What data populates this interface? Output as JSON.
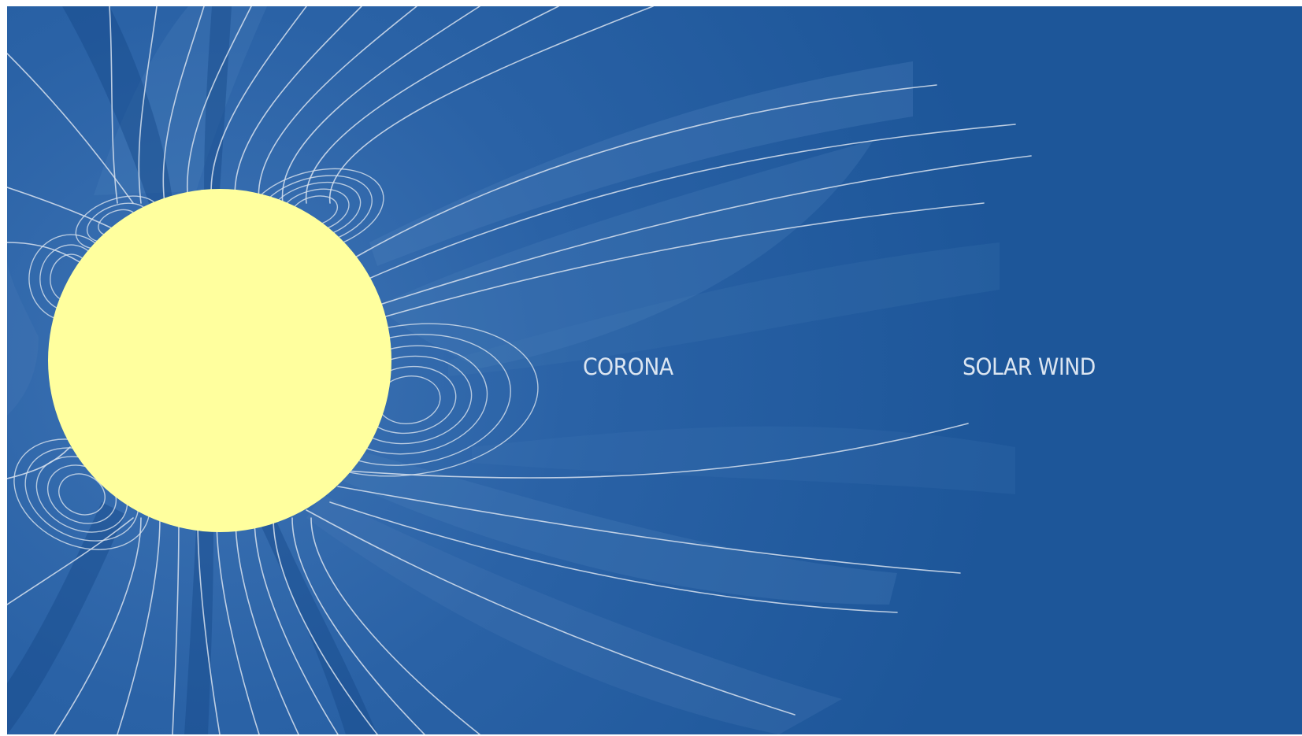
{
  "labels": {
    "corona": "CORONA",
    "solar_wind": "SOLAR WIND"
  },
  "colors": {
    "background": "#1d5699",
    "sun": "#ffff9e",
    "field_lines": "#d8e2ee",
    "label_text": "#dbe5f1",
    "band_light": "#4a7db9",
    "band_dark": "#174a8a"
  }
}
